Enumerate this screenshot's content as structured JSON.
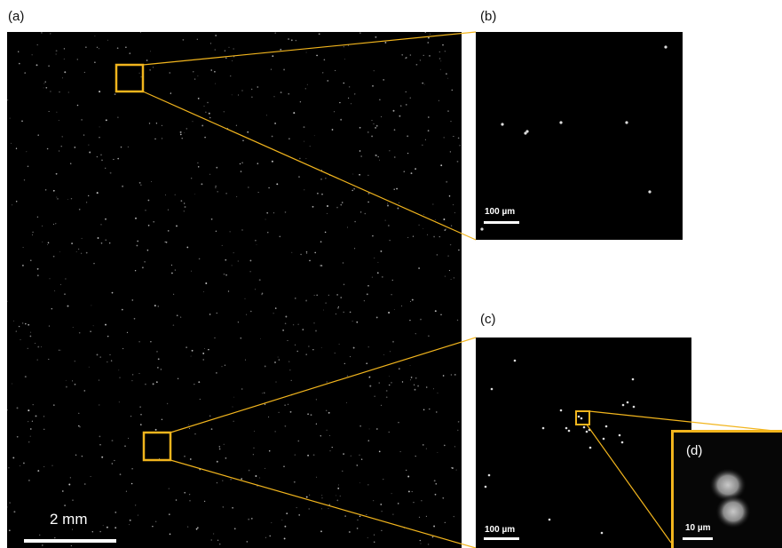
{
  "colors": {
    "highlight": "#f2b51d",
    "background": "#000000",
    "particle": "#d9d9d9"
  },
  "panels": {
    "a": {
      "label": "(a)",
      "scale_label": "2 mm"
    },
    "b": {
      "label": "(b)",
      "scale_label": "100 µm"
    },
    "c": {
      "label": "(c)",
      "scale_label": "100 µm"
    },
    "d": {
      "label": "(d)",
      "scale_label": "10 µm"
    }
  }
}
